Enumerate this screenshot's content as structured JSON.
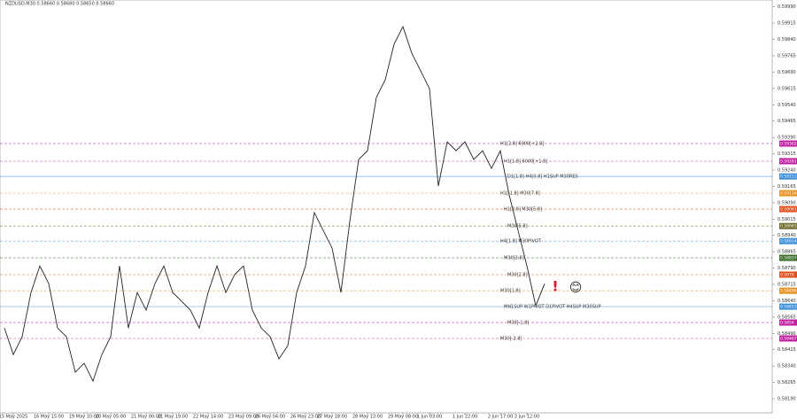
{
  "chart_data": {
    "type": "line",
    "title": "NZDUSD,M30 0.58660 0.58680 0.58650 0.58660",
    "categories": [
      null,
      "15 May 2025",
      null,
      null,
      null,
      "16 May 15:00",
      null,
      null,
      null,
      "19 May 10:00",
      null,
      null,
      "20 May 05:00",
      null,
      null,
      null,
      "21 May 00:00",
      null,
      null,
      "21 May 19:00",
      null,
      null,
      null,
      "22 May 14:00",
      null,
      null,
      null,
      "23 May 09:00",
      null,
      null,
      "26 May 04:00",
      null,
      null,
      null,
      "26 May 23:00",
      null,
      null,
      "27 May 18:00",
      null,
      null,
      null,
      "28 May 13:00",
      null,
      null,
      null,
      "29 May 08:00",
      null,
      null,
      "1 Jun 03:00",
      null,
      null,
      null,
      "1 Jun 22:00",
      null,
      null,
      null,
      "2 Jun 17:00",
      null,
      null,
      "3 Jun 12:00",
      null,
      null
    ],
    "values": [
      0.58515,
      0.58393,
      0.58475,
      0.58678,
      0.588,
      0.58719,
      0.58515,
      0.58475,
      0.58312,
      0.58353,
      0.58271,
      0.58393,
      0.58475,
      0.588,
      0.58515,
      0.58678,
      0.58597,
      0.58719,
      0.588,
      0.58678,
      0.58638,
      0.58597,
      0.58515,
      0.58678,
      0.588,
      0.58678,
      0.5876,
      0.588,
      0.58597,
      0.58515,
      0.58475,
      0.58373,
      0.58434,
      0.58678,
      0.588,
      0.59045,
      0.58963,
      0.58882,
      0.58678,
      0.59004,
      0.59289,
      0.59329,
      0.59574,
      0.59655,
      0.59818,
      0.59899,
      0.59777,
      0.59696,
      0.59614,
      0.59167,
      0.5937,
      0.59329,
      0.5937,
      0.59289,
      0.59329,
      0.59248,
      0.59329,
      0.59126,
      0.58963,
      0.588,
      0.58617,
      0.58719
    ],
    "color": "#222222",
    "ylim": [
      0.58125,
      0.60005
    ],
    "yticks": [
      {
        "value": 0.5819,
        "label": "0.58190"
      },
      0.58265,
      {
        "value": 0.5834,
        "label": "0.58340"
      },
      0.58415,
      {
        "value": 0.5849,
        "label": "0.58490"
      },
      0.58565,
      {
        "value": 0.5864,
        "label": "0.58640"
      },
      0.58715,
      {
        "value": 0.5879,
        "label": "0.58790"
      },
      0.58865,
      {
        "value": 0.5894,
        "label": "0.58940"
      },
      0.59015,
      {
        "value": 0.5909,
        "label": "0.59090"
      },
      0.59165,
      {
        "value": 0.5924,
        "label": "0.59240"
      },
      0.59315,
      {
        "value": 0.5939,
        "label": "0.59390"
      },
      0.59465,
      {
        "value": 0.5954,
        "label": "0.59540"
      },
      0.59615,
      {
        "value": 0.5969,
        "label": "0.59690"
      },
      0.59765,
      {
        "value": 0.5984,
        "label": "0.59840"
      },
      0.59915,
      {
        "value": 0.5999,
        "label": "0.59990"
      }
    ],
    "levels": [
      {
        "label": "H1[2.8] 6000[+2.8]",
        "price": 0.59362,
        "color": "#c020a0"
      },
      {
        "label": "H1[1.8] 6000[+1.8]",
        "price": 0.59281,
        "color": "#c020a0"
      },
      {
        "label": "D1[1.8] H4[0.8] H1SUP M30RES",
        "price": 0.59211,
        "color": "#3a8fd8"
      },
      {
        "label": "H1[-1.8] M30[7.8]",
        "price": 0.59134,
        "color": "#e8901c"
      },
      {
        "label": "H1[2.8] M30[5.8]",
        "price": 0.59061,
        "color": "#e0501c"
      },
      {
        "label": "M30[5.8]",
        "price": 0.58983,
        "color": "#6b6b2a"
      },
      {
        "label": "H4[1.8] M30PIVOT",
        "price": 0.58914,
        "color": "#3a8fd8"
      },
      {
        "label": "M30[3.8]",
        "price": 0.58837,
        "color": "#3a6b2a"
      },
      {
        "label": "M30[2.8]",
        "price": 0.5876,
        "color": "#e0501c"
      },
      {
        "label": "M30[1.8]",
        "price": 0.58686,
        "color": "#e8901c"
      },
      {
        "label": "MN1SUP W1PIVOT D1PIVOT H4SUP M30SUP",
        "price": 0.58613,
        "color": "#3a8fd8"
      },
      {
        "label": "M30[-1.8]",
        "price": 0.5854,
        "color": "#c020a0"
      },
      {
        "label": "M30[-2.8]",
        "price": 0.58467,
        "color": "#c020a0"
      }
    ],
    "annotations": [
      "!",
      "😊"
    ]
  }
}
